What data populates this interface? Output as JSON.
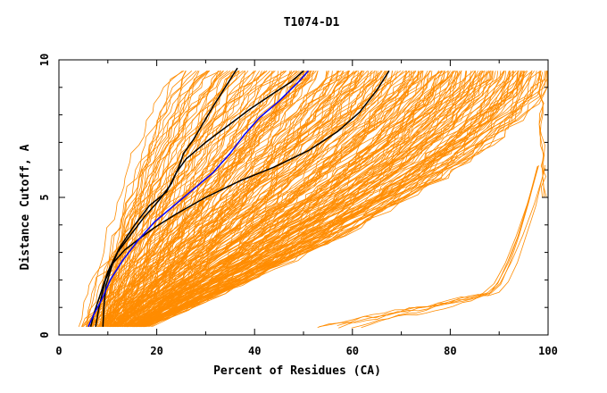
{
  "chart_data": {
    "type": "line",
    "title": "T1074-D1",
    "xlabel": "Percent of Residues (CA)",
    "ylabel": "Distance Cutoff, A",
    "xlim": [
      0,
      100
    ],
    "ylim": [
      0,
      10
    ],
    "x_ticks": [
      0,
      20,
      40,
      60,
      80,
      100
    ],
    "x_tick_labels": [
      "0",
      "20",
      "40",
      "60",
      "80",
      "100"
    ],
    "y_ticks": [
      0,
      5,
      10
    ],
    "y_tick_labels": [
      "0",
      "5",
      "10"
    ],
    "grid": false,
    "legend": "none",
    "colors": {
      "background_curves": "#ff8c00",
      "highlight_black": "#000000",
      "highlight_blue": "#0000ff"
    },
    "highlight_series": [
      {
        "color": "#000000",
        "x": [
          7.5,
          8.2,
          9.5,
          12.0,
          14.5,
          17.5,
          20.5,
          23.0,
          24.5,
          25.5,
          27.5,
          29.5,
          31.5,
          34.0,
          36.5
        ],
        "y": [
          0.3,
          1.0,
          2.0,
          3.0,
          3.6,
          4.3,
          4.9,
          5.5,
          6.1,
          6.6,
          7.1,
          7.7,
          8.3,
          9.0,
          9.7
        ]
      },
      {
        "color": "#000000",
        "x": [
          6.5,
          7.2,
          8.5,
          10.0,
          12.5,
          15.5,
          18.5,
          22.0,
          24.0,
          26.0,
          30.0,
          34.5,
          39.0,
          44.0,
          47.5,
          50.0
        ],
        "y": [
          0.3,
          0.8,
          1.5,
          2.3,
          3.2,
          4.0,
          4.7,
          5.2,
          5.9,
          6.4,
          7.0,
          7.6,
          8.2,
          8.8,
          9.2,
          9.6
        ]
      },
      {
        "color": "#000000",
        "x": [
          9.0,
          9.2,
          9.6,
          11.0,
          13.5,
          16.5,
          19.5,
          24.0,
          30.0,
          37.0,
          44.0,
          51.0,
          57.0,
          61.5,
          65.0,
          67.5
        ],
        "y": [
          0.3,
          1.0,
          1.8,
          2.6,
          3.1,
          3.5,
          3.9,
          4.4,
          5.0,
          5.6,
          6.1,
          6.7,
          7.4,
          8.1,
          8.9,
          9.6
        ]
      },
      {
        "color": "#0000ff",
        "x": [
          6.0,
          7.0,
          8.8,
          10.5,
          13.0,
          16.0,
          19.5,
          23.5,
          27.5,
          31.5,
          35.0,
          38.0,
          41.0,
          45.0,
          49.0,
          51.0
        ],
        "y": [
          0.3,
          0.7,
          1.3,
          2.0,
          2.7,
          3.4,
          4.1,
          4.7,
          5.3,
          5.9,
          6.6,
          7.3,
          7.9,
          8.5,
          9.2,
          9.6
        ]
      }
    ]
  }
}
